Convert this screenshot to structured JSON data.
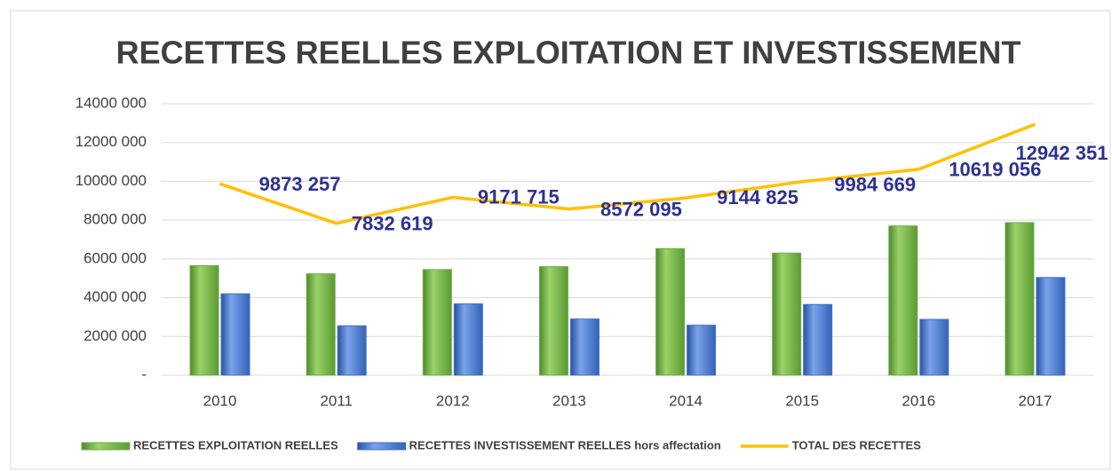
{
  "chart_data": {
    "type": "bar",
    "title": "RECETTES REELLES EXPLOITATION ET INVESTISSEMENT",
    "categories": [
      "2010",
      "2011",
      "2012",
      "2013",
      "2014",
      "2015",
      "2016",
      "2017"
    ],
    "series": [
      {
        "name": "RECETTES EXPLOITATION REELLES",
        "type": "bar",
        "color": "#70ad47",
        "values": [
          5650000,
          5230000,
          5450000,
          5600000,
          6530000,
          6300000,
          7700000,
          7870000
        ]
      },
      {
        "name": "RECETTES INVESTISSEMENT REELLES hors affectation",
        "type": "bar",
        "color": "#4472c4",
        "values": [
          4200000,
          2550000,
          3680000,
          2900000,
          2580000,
          3650000,
          2880000,
          5040000
        ]
      },
      {
        "name": "TOTAL DES RECETTES",
        "type": "line",
        "color": "#ffc000",
        "values": [
          9873257,
          7832619,
          9171715,
          8572095,
          9144825,
          9984669,
          10619056,
          12942351
        ],
        "value_labels": [
          "9873 257",
          "7832 619",
          "9171 715",
          "8572 095",
          "9144 825",
          "9984 669",
          "10619 056",
          "12942 351"
        ],
        "label_color": "#2e3192"
      }
    ],
    "ylim": [
      0,
      14000000
    ],
    "yticks": [
      {
        "value": 0,
        "label": "-"
      },
      {
        "value": 2000000,
        "label": "2000 000"
      },
      {
        "value": 4000000,
        "label": "4000 000"
      },
      {
        "value": 6000000,
        "label": "6000 000"
      },
      {
        "value": 8000000,
        "label": "8000 000"
      },
      {
        "value": 10000000,
        "label": "10000 000"
      },
      {
        "value": 12000000,
        "label": "12000 000"
      },
      {
        "value": 14000000,
        "label": "14000 000"
      }
    ],
    "grid": true,
    "legend": "bottom"
  }
}
